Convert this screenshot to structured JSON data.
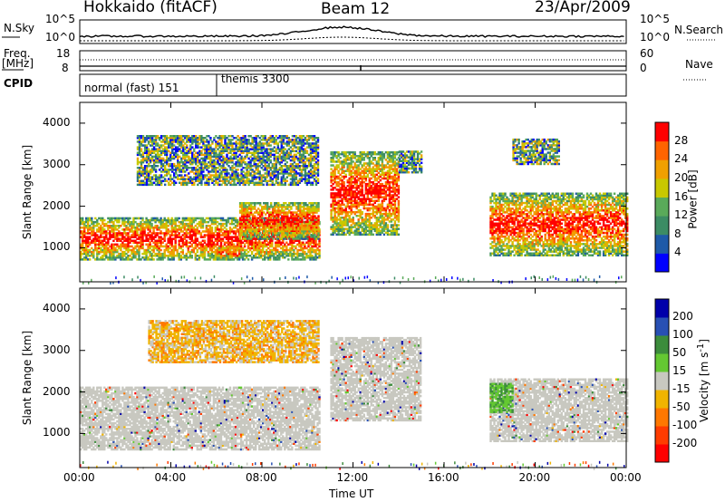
{
  "header": {
    "station": "Hokkaido (fitACF)",
    "beam": "Beam 12",
    "date": "23/Apr/2009"
  },
  "noise_panel": {
    "left_label": "N.Sky",
    "right_label": "N.Search",
    "left_ticks": [
      "10^5",
      "10^0"
    ],
    "right_ticks": [
      "10^5",
      "10^0"
    ]
  },
  "freq_panel": {
    "left_label": "Freq.",
    "left_unit": "[MHz]",
    "left_ticks": [
      "18",
      "8"
    ],
    "right_label": "Nave",
    "right_ticks": [
      "60",
      "0"
    ]
  },
  "cpid_panel": {
    "label": "CPID",
    "modes": [
      {
        "name": "normal (fast) 151",
        "start_hour": 0
      },
      {
        "name": "themis 3300",
        "start_hour": 6
      }
    ]
  },
  "chart_data": [
    {
      "type": "heatmap",
      "quantity": "Power",
      "ylabel": "Slant Range [km]",
      "ylim": [
        180,
        4500
      ],
      "yticks": [
        1000,
        2000,
        3000,
        4000
      ],
      "xlim": [
        0,
        24
      ],
      "colorbar": {
        "label": "Power [dB]",
        "ticks": [
          "4",
          "8",
          "12",
          "16",
          "20",
          "24",
          "28"
        ],
        "colors": [
          "#0000ff",
          "#1e5aa8",
          "#3c8c64",
          "#5aaa5a",
          "#c8c800",
          "#f0a000",
          "#ff6400",
          "#ff0000"
        ]
      },
      "echo_regions": [
        {
          "t_start": 0.0,
          "t_end": 10.5,
          "r_start": 700,
          "r_end": 1700,
          "level": "high"
        },
        {
          "t_start": 6.0,
          "t_end": 7.0,
          "r_start": 700,
          "r_end": 1000,
          "level": "high"
        },
        {
          "t_start": 7.0,
          "t_end": 10.5,
          "r_start": 1200,
          "r_end": 2100,
          "level": "high"
        },
        {
          "t_start": 2.5,
          "t_end": 10.5,
          "r_start": 2500,
          "r_end": 3700,
          "level": "mid"
        },
        {
          "t_start": 11.0,
          "t_end": 14.0,
          "r_start": 1300,
          "r_end": 3300,
          "level": "high"
        },
        {
          "t_start": 14.0,
          "t_end": 15.0,
          "r_start": 2800,
          "r_end": 3300,
          "level": "mid"
        },
        {
          "t_start": 18.0,
          "t_end": 24.0,
          "r_start": 800,
          "r_end": 2300,
          "level": "high"
        },
        {
          "t_start": 19.0,
          "t_end": 21.0,
          "r_start": 3000,
          "r_end": 3600,
          "level": "mid"
        }
      ]
    },
    {
      "type": "heatmap",
      "quantity": "Velocity",
      "ylabel": "Slant Range [km]",
      "ylim": [
        180,
        4500
      ],
      "yticks": [
        1000,
        2000,
        3000,
        4000
      ],
      "xlim": [
        0,
        24
      ],
      "xlabel": "Time UT",
      "xticks": [
        "00:00",
        "04:00",
        "08:00",
        "12:00",
        "16:00",
        "20:00",
        "00:00"
      ],
      "xtick_hours": [
        0,
        4,
        8,
        12,
        16,
        20,
        24
      ],
      "colorbar": {
        "label": "Velocity [m s^-1]",
        "ticks": [
          "200",
          "100",
          "50",
          "15",
          "-15",
          "-50",
          "-100",
          "-200"
        ],
        "colors": [
          "#0000aa",
          "#2850b4",
          "#3c8c3c",
          "#64c832",
          "#c8c8c0",
          "#f0b400",
          "#ff7800",
          "#ff3c00",
          "#ff0000"
        ]
      },
      "echo_regions": [
        {
          "t_start": 0.0,
          "t_end": 10.5,
          "r_start": 600,
          "r_end": 2100,
          "level": "ground"
        },
        {
          "t_start": 3.0,
          "t_end": 10.5,
          "r_start": 2700,
          "r_end": 3700,
          "level": "neg"
        },
        {
          "t_start": 11.0,
          "t_end": 15.0,
          "r_start": 1300,
          "r_end": 3300,
          "level": "ground"
        },
        {
          "t_start": 18.0,
          "t_end": 24.0,
          "r_start": 800,
          "r_end": 2300,
          "level": "ground"
        },
        {
          "t_start": 18.0,
          "t_end": 19.0,
          "r_start": 1500,
          "r_end": 2200,
          "level": "pos"
        }
      ]
    }
  ]
}
